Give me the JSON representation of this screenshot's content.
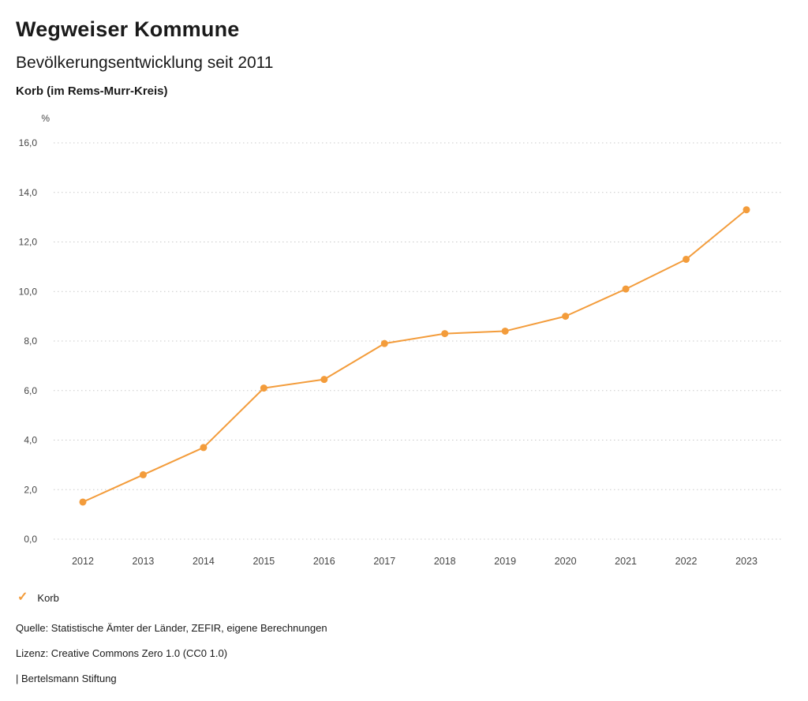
{
  "header": {
    "title": "Wegweiser Kommune",
    "subtitle": "Bevölkerungsentwicklung seit 2011",
    "region": "Korb (im Rems-Murr-Kreis)"
  },
  "chart_data": {
    "type": "line",
    "title": "Bevölkerungsentwicklung seit 2011 — Korb (im Rems-Murr-Kreis)",
    "unit": "%",
    "xlabel": "",
    "ylabel": "%",
    "x": [
      "2012",
      "2013",
      "2014",
      "2015",
      "2016",
      "2017",
      "2018",
      "2019",
      "2020",
      "2021",
      "2022",
      "2023"
    ],
    "series": [
      {
        "name": "Korb",
        "color": "#f39c3b",
        "values": [
          1.5,
          2.6,
          3.7,
          6.1,
          6.45,
          7.9,
          8.3,
          8.4,
          9.0,
          10.1,
          11.3,
          13.3
        ]
      }
    ],
    "ylim": [
      0,
      16
    ],
    "ytick_values": [
      0,
      2,
      4,
      6,
      8,
      10,
      12,
      14,
      16
    ],
    "ytick_labels": [
      "0,0",
      "2,0",
      "4,0",
      "6,0",
      "8,0",
      "10,0",
      "12,0",
      "14,0",
      "16,0"
    ],
    "grid": "horizontal-dotted",
    "legend_position": "bottom-left"
  },
  "legend": {
    "items": [
      {
        "label": "Korb",
        "color": "#f39c3b"
      }
    ]
  },
  "icons": {
    "legend_check": "✓"
  },
  "footer": {
    "source": "Quelle: Statistische Ämter der Länder, ZEFIR, eigene Berechnungen",
    "license": "Lizenz: Creative Commons Zero 1.0 (CC0 1.0)",
    "attribution": "| Bertelsmann Stiftung"
  },
  "colors": {
    "series_orange": "#f39c3b",
    "grid_gray": "#c9c9c9",
    "axis_text": "#454545",
    "background": "#ffffff"
  }
}
